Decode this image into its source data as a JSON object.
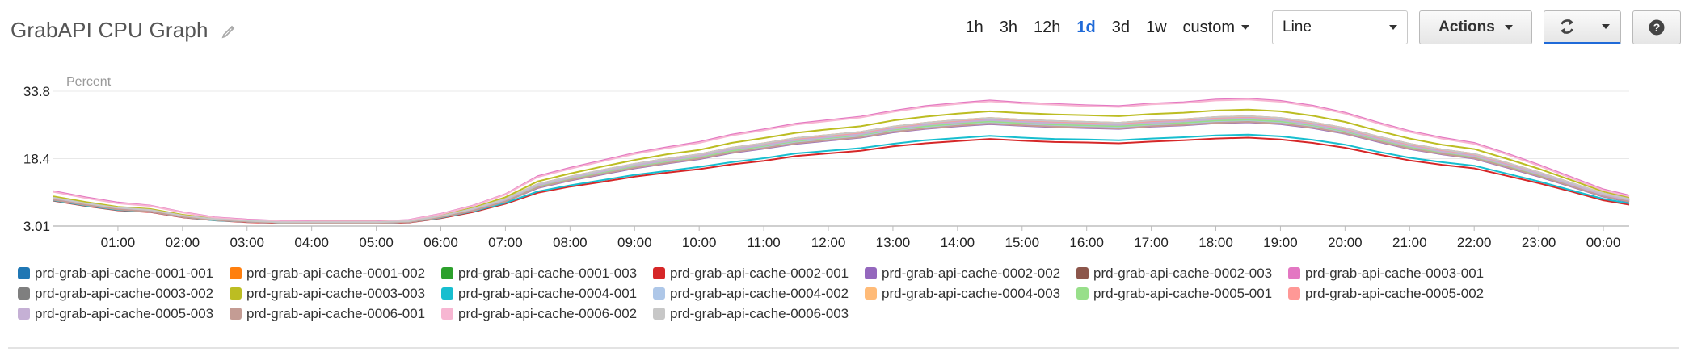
{
  "header": {
    "title": "GrabAPI CPU Graph",
    "edit_icon": "pencil-icon"
  },
  "toolbar": {
    "ranges": [
      "1h",
      "3h",
      "12h",
      "1d",
      "3d",
      "1w"
    ],
    "active_range": "1d",
    "custom_label": "custom",
    "chart_type_value": "Line",
    "actions_label": "Actions",
    "refresh_icon": "refresh-icon",
    "help_icon": "help-icon",
    "help_label": "?"
  },
  "colors": {
    "accent": "#1f6ad8",
    "grid": "#e8e8e8"
  },
  "chart_data": {
    "type": "line",
    "ylabel": "Percent",
    "yticks": [
      3.01,
      18.4,
      33.8
    ],
    "ylim": [
      3.01,
      33.8
    ],
    "xlim": [
      0.0,
      24.4
    ],
    "xtick_labels": [
      "01:00",
      "02:00",
      "03:00",
      "04:00",
      "05:00",
      "06:00",
      "07:00",
      "08:00",
      "09:00",
      "10:00",
      "11:00",
      "12:00",
      "13:00",
      "14:00",
      "15:00",
      "16:00",
      "17:00",
      "18:00",
      "19:00",
      "20:00",
      "21:00",
      "22:00",
      "23:00",
      "00:00"
    ],
    "grid": true,
    "legend_position": "bottom",
    "x": [
      0.0,
      0.5,
      1.0,
      1.5,
      2.0,
      2.5,
      3.0,
      3.5,
      4.0,
      4.5,
      5.0,
      5.5,
      6.0,
      6.5,
      7.0,
      7.5,
      8.0,
      8.5,
      9.0,
      9.5,
      10.0,
      10.5,
      11.0,
      11.5,
      12.0,
      12.5,
      13.0,
      13.5,
      14.0,
      14.5,
      15.0,
      15.5,
      16.0,
      16.5,
      17.0,
      17.5,
      18.0,
      18.5,
      19.0,
      19.5,
      20.0,
      20.5,
      21.0,
      21.5,
      22.0,
      22.5,
      23.0,
      23.5,
      24.0,
      24.4
    ],
    "series": [
      {
        "name": "prd-grab-api-cache-0001-001",
        "color": "#1f77b4",
        "values": [
          9.3,
          8.0,
          7.0,
          6.5,
          5.3,
          4.5,
          4.1,
          3.9,
          3.8,
          3.8,
          3.8,
          4.0,
          5.2,
          6.8,
          9.0,
          12.3,
          14.0,
          15.5,
          16.9,
          18.0,
          19.0,
          20.5,
          21.5,
          22.6,
          23.3,
          24.0,
          25.2,
          26.1,
          26.7,
          27.2,
          26.8,
          26.5,
          26.3,
          26.1,
          26.6,
          26.9,
          27.4,
          27.6,
          27.2,
          26.2,
          24.9,
          23.0,
          21.3,
          20.0,
          19.0,
          17.0,
          14.9,
          12.5,
          10.1,
          8.9
        ]
      },
      {
        "name": "prd-grab-api-cache-0001-002",
        "color": "#ff7f0e",
        "values": [
          9.5,
          8.2,
          7.1,
          6.6,
          5.4,
          4.5,
          4.2,
          3.9,
          3.9,
          3.9,
          3.9,
          4.1,
          5.3,
          7.0,
          9.2,
          12.6,
          14.3,
          15.8,
          17.2,
          18.4,
          19.4,
          20.9,
          21.9,
          23.1,
          23.8,
          24.5,
          25.7,
          26.6,
          27.2,
          27.7,
          27.3,
          27.0,
          26.8,
          26.6,
          27.1,
          27.4,
          27.9,
          28.1,
          27.7,
          26.7,
          25.4,
          23.5,
          21.8,
          20.5,
          19.5,
          17.5,
          15.3,
          12.9,
          10.5,
          9.2
        ]
      },
      {
        "name": "prd-grab-api-cache-0001-003",
        "color": "#2ca02c",
        "values": [
          9.1,
          7.9,
          6.8,
          6.4,
          5.2,
          4.4,
          4.0,
          3.8,
          3.7,
          3.7,
          3.7,
          3.9,
          5.1,
          6.6,
          8.7,
          11.9,
          13.6,
          15.0,
          16.4,
          17.5,
          18.5,
          19.9,
          20.9,
          22.0,
          22.7,
          23.4,
          24.6,
          25.4,
          26.0,
          26.5,
          26.1,
          25.8,
          25.6,
          25.4,
          25.9,
          26.2,
          26.7,
          26.9,
          26.5,
          25.6,
          24.3,
          22.5,
          20.8,
          19.6,
          18.6,
          16.6,
          14.5,
          12.2,
          9.8,
          8.6
        ]
      },
      {
        "name": "prd-grab-api-cache-0002-001",
        "color": "#d62728",
        "values": [
          8.8,
          7.6,
          6.6,
          6.2,
          5.0,
          4.3,
          3.9,
          3.7,
          3.6,
          3.6,
          3.6,
          3.8,
          4.8,
          6.2,
          8.1,
          10.6,
          12.0,
          13.1,
          14.3,
          15.2,
          16.0,
          17.1,
          17.9,
          19.0,
          19.6,
          20.2,
          21.2,
          21.9,
          22.4,
          22.9,
          22.5,
          22.2,
          22.1,
          21.9,
          22.3,
          22.6,
          23.0,
          23.2,
          22.8,
          22.0,
          20.9,
          19.4,
          18.0,
          17.0,
          16.2,
          14.5,
          12.8,
          10.9,
          8.9,
          7.9
        ]
      },
      {
        "name": "prd-grab-api-cache-0002-002",
        "color": "#9467bd",
        "values": [
          9.0,
          7.8,
          6.8,
          6.3,
          5.1,
          4.4,
          4.0,
          3.8,
          3.7,
          3.7,
          3.7,
          3.9,
          5.0,
          6.5,
          8.6,
          11.7,
          13.4,
          14.8,
          16.2,
          17.3,
          18.3,
          19.7,
          20.7,
          21.8,
          22.5,
          23.2,
          24.4,
          25.2,
          25.8,
          26.3,
          25.9,
          25.6,
          25.4,
          25.2,
          25.7,
          26.0,
          26.5,
          26.7,
          26.3,
          25.4,
          24.1,
          22.3,
          20.6,
          19.4,
          18.4,
          16.4,
          14.3,
          12.0,
          9.7,
          8.5
        ]
      },
      {
        "name": "prd-grab-api-cache-0002-003",
        "color": "#8c564b",
        "values": [
          9.2,
          7.9,
          6.9,
          6.5,
          5.3,
          4.5,
          4.1,
          3.9,
          3.8,
          3.8,
          3.8,
          4.0,
          5.2,
          6.7,
          8.9,
          12.2,
          13.9,
          15.4,
          16.8,
          17.9,
          18.9,
          20.4,
          21.4,
          22.5,
          23.2,
          23.9,
          25.1,
          26.0,
          26.6,
          27.1,
          26.7,
          26.4,
          26.2,
          26.0,
          26.5,
          26.8,
          27.3,
          27.5,
          27.1,
          26.1,
          24.8,
          22.9,
          21.2,
          19.9,
          18.9,
          16.9,
          14.8,
          12.4,
          10.0,
          8.8
        ]
      },
      {
        "name": "prd-grab-api-cache-0003-001",
        "color": "#e377c2",
        "values": [
          11.0,
          9.6,
          8.4,
          7.7,
          6.2,
          5.0,
          4.5,
          4.2,
          4.1,
          4.1,
          4.1,
          4.4,
          5.8,
          7.7,
          10.3,
          14.4,
          16.3,
          18.0,
          19.7,
          21.0,
          22.2,
          23.9,
          25.1,
          26.4,
          27.2,
          28.0,
          29.3,
          30.4,
          31.1,
          31.7,
          31.2,
          30.9,
          30.6,
          30.4,
          31.0,
          31.3,
          31.9,
          32.1,
          31.6,
          30.5,
          28.9,
          26.7,
          24.7,
          23.2,
          22.0,
          19.6,
          17.0,
          14.2,
          11.4,
          10.0
        ]
      },
      {
        "name": "prd-grab-api-cache-0003-002",
        "color": "#7f7f7f",
        "values": [
          9.4,
          8.1,
          7.1,
          6.6,
          5.4,
          4.5,
          4.2,
          3.9,
          3.9,
          3.9,
          3.9,
          4.1,
          5.3,
          6.9,
          9.1,
          12.5,
          14.2,
          15.7,
          17.1,
          18.3,
          19.3,
          20.8,
          21.8,
          23.0,
          23.7,
          24.4,
          25.6,
          26.5,
          27.1,
          27.6,
          27.2,
          26.9,
          26.7,
          26.5,
          27.0,
          27.3,
          27.8,
          28.0,
          27.6,
          26.6,
          25.3,
          23.4,
          21.7,
          20.4,
          19.4,
          17.4,
          15.2,
          12.8,
          10.4,
          9.1
        ]
      },
      {
        "name": "prd-grab-api-cache-0003-003",
        "color": "#bcbd22",
        "values": [
          9.8,
          8.5,
          7.4,
          6.9,
          5.6,
          4.7,
          4.3,
          4.0,
          4.0,
          4.0,
          4.0,
          4.2,
          5.5,
          7.2,
          9.6,
          13.2,
          15.0,
          16.6,
          18.1,
          19.4,
          20.4,
          22.0,
          23.1,
          24.3,
          25.1,
          25.8,
          27.1,
          28.0,
          28.7,
          29.2,
          28.8,
          28.5,
          28.3,
          28.1,
          28.6,
          28.9,
          29.4,
          29.6,
          29.2,
          28.2,
          26.8,
          24.8,
          23.0,
          21.6,
          20.6,
          18.4,
          16.1,
          13.5,
          10.9,
          9.5
        ]
      },
      {
        "name": "prd-grab-api-cache-0004-001",
        "color": "#17becf",
        "values": [
          8.9,
          7.7,
          6.7,
          6.3,
          5.1,
          4.3,
          4.0,
          3.8,
          3.7,
          3.7,
          3.7,
          3.9,
          4.9,
          6.4,
          8.3,
          10.9,
          12.3,
          13.5,
          14.7,
          15.6,
          16.5,
          17.6,
          18.5,
          19.6,
          20.2,
          20.8,
          21.8,
          22.6,
          23.1,
          23.6,
          23.2,
          22.9,
          22.8,
          22.6,
          23.0,
          23.3,
          23.7,
          23.9,
          23.5,
          22.7,
          21.6,
          20.0,
          18.6,
          17.6,
          16.8,
          15.0,
          13.2,
          11.2,
          9.2,
          8.2
        ]
      },
      {
        "name": "prd-grab-api-cache-0004-002",
        "color": "#aec7e8",
        "values": [
          9.1,
          7.9,
          6.9,
          6.4,
          5.2,
          4.4,
          4.0,
          3.8,
          3.7,
          3.7,
          3.7,
          3.9,
          5.1,
          6.6,
          8.8,
          12.0,
          13.7,
          15.1,
          16.5,
          17.6,
          18.6,
          20.0,
          21.0,
          22.1,
          22.8,
          23.5,
          24.7,
          25.5,
          26.1,
          26.6,
          26.2,
          25.9,
          25.7,
          25.5,
          26.0,
          26.3,
          26.8,
          27.0,
          26.6,
          25.7,
          24.4,
          22.6,
          20.9,
          19.7,
          18.7,
          16.7,
          14.6,
          12.3,
          9.9,
          8.7
        ]
      },
      {
        "name": "prd-grab-api-cache-0004-003",
        "color": "#ffbb78",
        "values": [
          9.3,
          8.0,
          7.0,
          6.5,
          5.3,
          4.5,
          4.1,
          3.9,
          3.8,
          3.8,
          3.8,
          4.0,
          5.2,
          6.8,
          9.0,
          12.3,
          14.0,
          15.5,
          16.9,
          18.1,
          19.1,
          20.5,
          21.6,
          22.7,
          23.4,
          24.1,
          25.3,
          26.2,
          26.8,
          27.3,
          26.9,
          26.6,
          26.4,
          26.2,
          26.7,
          27.0,
          27.5,
          27.7,
          27.3,
          26.3,
          25.0,
          23.1,
          21.4,
          20.1,
          19.1,
          17.1,
          15.0,
          12.6,
          10.2,
          8.9
        ]
      },
      {
        "name": "prd-grab-api-cache-0005-001",
        "color": "#98df8a",
        "values": [
          9.2,
          8.0,
          6.9,
          6.5,
          5.2,
          4.4,
          4.1,
          3.8,
          3.8,
          3.8,
          3.8,
          4.0,
          5.2,
          6.7,
          8.9,
          12.1,
          13.8,
          15.3,
          16.7,
          17.8,
          18.8,
          20.2,
          21.3,
          22.4,
          23.1,
          23.8,
          25.0,
          25.8,
          26.4,
          26.9,
          26.5,
          26.2,
          26.0,
          25.8,
          26.3,
          26.6,
          27.1,
          27.3,
          26.9,
          26.0,
          24.7,
          22.8,
          21.1,
          19.8,
          18.8,
          16.8,
          14.7,
          12.4,
          10.0,
          8.8
        ]
      },
      {
        "name": "prd-grab-api-cache-0005-002",
        "color": "#ff9896",
        "values": [
          9.4,
          8.1,
          7.1,
          6.6,
          5.4,
          4.5,
          4.2,
          3.9,
          3.9,
          3.9,
          3.9,
          4.1,
          5.3,
          6.9,
          9.1,
          12.4,
          14.1,
          15.6,
          17.0,
          18.2,
          19.2,
          20.7,
          21.7,
          22.9,
          23.6,
          24.3,
          25.5,
          26.4,
          27.0,
          27.5,
          27.1,
          26.8,
          26.6,
          26.4,
          26.9,
          27.2,
          27.7,
          27.9,
          27.5,
          26.5,
          25.2,
          23.3,
          21.6,
          20.3,
          19.3,
          17.3,
          15.1,
          12.7,
          10.3,
          9.0
        ]
      },
      {
        "name": "prd-grab-api-cache-0005-003",
        "color": "#c5b0d5",
        "values": [
          9.3,
          8.1,
          7.0,
          6.5,
          5.3,
          4.5,
          4.1,
          3.9,
          3.8,
          3.8,
          3.8,
          4.0,
          5.2,
          6.8,
          9.0,
          12.3,
          14.0,
          15.5,
          16.9,
          18.0,
          19.0,
          20.5,
          21.5,
          22.6,
          23.3,
          24.0,
          25.2,
          26.1,
          26.7,
          27.2,
          26.8,
          26.5,
          26.3,
          26.1,
          26.6,
          26.9,
          27.4,
          27.6,
          27.2,
          26.2,
          24.9,
          23.0,
          21.3,
          20.0,
          19.0,
          17.0,
          14.9,
          12.5,
          10.1,
          8.9
        ]
      },
      {
        "name": "prd-grab-api-cache-0006-001",
        "color": "#c49c94",
        "values": [
          9.0,
          7.8,
          6.8,
          6.3,
          5.1,
          4.4,
          4.0,
          3.8,
          3.7,
          3.7,
          3.7,
          3.9,
          5.0,
          6.5,
          8.6,
          11.8,
          13.5,
          14.9,
          16.3,
          17.4,
          18.4,
          19.8,
          20.8,
          21.9,
          22.6,
          23.3,
          24.5,
          25.3,
          25.9,
          26.4,
          26.0,
          25.7,
          25.5,
          25.3,
          25.8,
          26.1,
          26.6,
          26.8,
          26.4,
          25.5,
          24.2,
          22.4,
          20.7,
          19.5,
          18.5,
          16.5,
          14.4,
          12.1,
          9.8,
          8.6
        ]
      },
      {
        "name": "prd-grab-api-cache-0006-002",
        "color": "#f7b6d2",
        "values": [
          10.8,
          9.4,
          8.2,
          7.6,
          6.1,
          4.9,
          4.4,
          4.1,
          4.0,
          4.0,
          4.0,
          4.3,
          5.7,
          7.6,
          10.2,
          14.2,
          16.1,
          17.8,
          19.5,
          20.8,
          22.0,
          23.7,
          24.9,
          26.2,
          27.0,
          27.8,
          29.1,
          30.2,
          30.9,
          31.5,
          31.0,
          30.7,
          30.4,
          30.2,
          30.8,
          31.1,
          31.7,
          31.9,
          31.4,
          30.3,
          28.7,
          26.5,
          24.5,
          23.0,
          21.8,
          19.4,
          16.8,
          14.0,
          11.2,
          9.8
        ]
      },
      {
        "name": "prd-grab-api-cache-0006-003",
        "color": "#c7c7c7",
        "values": [
          9.5,
          8.2,
          7.2,
          6.7,
          5.4,
          4.6,
          4.2,
          3.9,
          3.9,
          3.9,
          3.9,
          4.1,
          5.3,
          7.0,
          9.2,
          12.6,
          14.3,
          15.8,
          17.2,
          18.4,
          19.4,
          20.9,
          21.9,
          23.1,
          23.8,
          24.5,
          25.7,
          26.6,
          27.2,
          27.7,
          27.3,
          27.0,
          26.8,
          26.6,
          27.1,
          27.4,
          27.9,
          28.1,
          27.7,
          26.7,
          25.4,
          23.5,
          21.8,
          20.5,
          19.5,
          17.5,
          15.3,
          12.9,
          10.5,
          9.2
        ]
      }
    ]
  }
}
